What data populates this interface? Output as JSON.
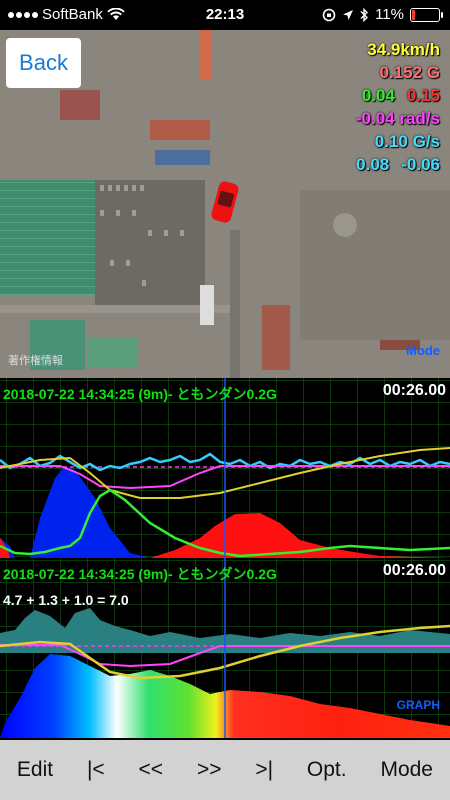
{
  "status": {
    "carrier": "SoftBank",
    "time": "22:13",
    "battery": "11%",
    "battery_level": 0.11
  },
  "map": {
    "back_label": "Back",
    "copyright": "著作権情報",
    "mode_label": "Mode"
  },
  "hud": {
    "speed": "34.9km/h",
    "g_total": "0.152 G",
    "g_left": "0.04",
    "g_right": "0.15",
    "rotation": "-0.04 rad/s",
    "g_rate": "0.10 G/s",
    "g_rate_left": "0.08",
    "g_rate_right": "-0.06",
    "colors": {
      "speed": "#ffff33",
      "g": "#ff7070",
      "green": "#33ee33",
      "red": "#ff3030",
      "magenta": "#ff44ff",
      "cyan": "#44ddff"
    }
  },
  "panel1": {
    "header": "2018-07-22 14:34:25 (9m)- ともンダン0.2G",
    "timer": "00:26.00"
  },
  "panel2": {
    "header": "2018-07-22 14:34:25 (9m)- ともンダン0.2G",
    "timer": "00:26.00",
    "formula": "4.7 + 1.3 + 1.0 = 7.0",
    "mode_label": "GRAPH"
  },
  "toolbar": {
    "edit": "Edit",
    "first": "|<",
    "prev": "<<",
    "next": ">>",
    "last": ">|",
    "options": "Opt.",
    "mode": "Mode"
  }
}
